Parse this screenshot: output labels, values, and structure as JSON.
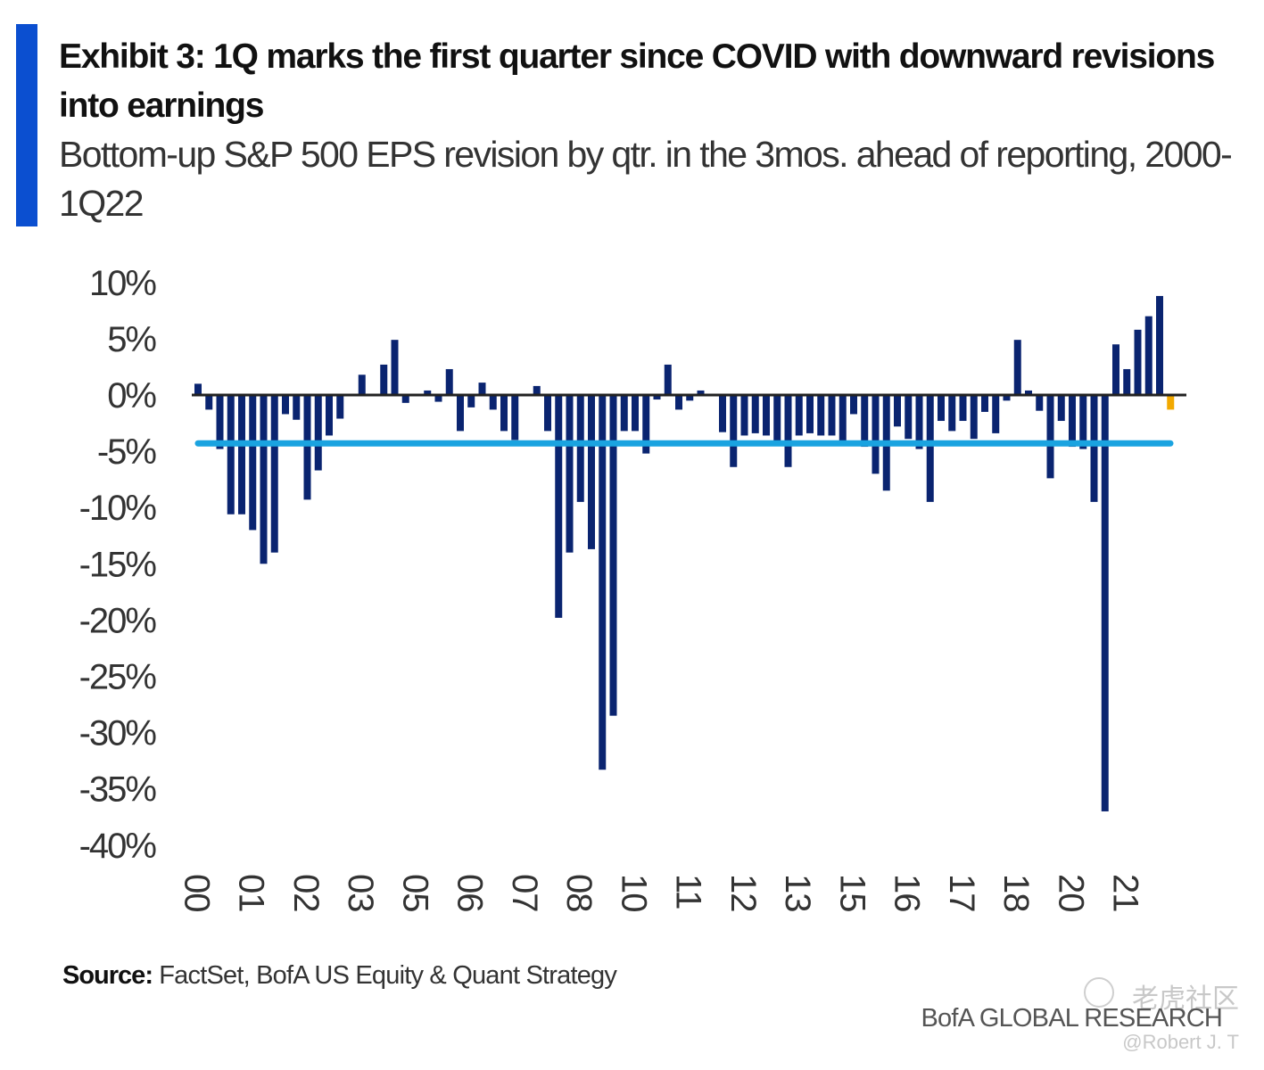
{
  "header": {
    "title": "Exhibit 3: 1Q marks the first quarter since COVID with downward revisions into earnings",
    "subtitle": "Bottom-up S&P 500 EPS revision by qtr. in the 3mos. ahead of reporting, 2000-1Q22"
  },
  "footer": {
    "source_label": "Source:",
    "source_text": "FactSet, BofA US Equity & Quant Strategy",
    "brand": "BofA GLOBAL RESEARCH",
    "watermark_cn": "老虎社区",
    "watermark_user": "@Robert J. T"
  },
  "colors": {
    "accent": "#0b4fd0",
    "bar": "#0a2470",
    "highlight_bar": "#f2a900",
    "average_line": "#1aa3e0",
    "zero_line": "#222222"
  },
  "chart_data": {
    "type": "bar",
    "title": "Exhibit 3: 1Q marks the first quarter since COVID with downward revisions into earnings",
    "subtitle": "Bottom-up S&P 500 EPS revision by qtr. in the 3mos. ahead of reporting, 2000-1Q22",
    "xlabel": "",
    "ylabel": "",
    "ylim": [
      -40,
      10
    ],
    "yticks": [
      10,
      5,
      0,
      -5,
      -10,
      -15,
      -20,
      -25,
      -30,
      -35,
      -40
    ],
    "ytick_labels": [
      "10%",
      "5%",
      "0%",
      "-5%",
      "-10%",
      "-15%",
      "-20%",
      "-25%",
      "-30%",
      "-35%",
      "-40%"
    ],
    "xtick_labels": [
      "00",
      "01",
      "02",
      "03",
      "05",
      "06",
      "07",
      "08",
      "10",
      "11",
      "12",
      "13",
      "15",
      "16",
      "17",
      "18",
      "20",
      "21"
    ],
    "xtick_quarter_index": [
      0,
      5,
      10,
      15,
      20,
      25,
      30,
      35,
      40,
      45,
      50,
      55,
      60,
      65,
      70,
      75,
      80,
      85
    ],
    "grid": false,
    "legend": "none",
    "period": "1Q00-1Q22 (quarterly)",
    "series": [
      {
        "name": "EPS revision (3 mos. ahead of reporting)",
        "unit": "%",
        "values": [
          1.0,
          -1.3,
          -4.8,
          -10.6,
          -10.6,
          -12.0,
          -15.0,
          -14.0,
          -1.7,
          -2.2,
          -9.3,
          -6.7,
          -3.6,
          -2.1,
          0.0,
          1.8,
          0.0,
          2.7,
          4.9,
          -0.7,
          0.0,
          0.4,
          -0.6,
          2.3,
          -3.2,
          -1.1,
          1.1,
          -1.3,
          -3.2,
          -4.0,
          0.0,
          0.8,
          -3.2,
          -19.8,
          -14.0,
          -9.5,
          -13.7,
          -33.3,
          -28.5,
          -3.2,
          -3.2,
          -5.2,
          -0.4,
          2.7,
          -1.3,
          -0.5,
          0.4,
          0.0,
          -3.3,
          -6.4,
          -3.6,
          -3.4,
          -3.6,
          -4.2,
          -6.4,
          -3.6,
          -3.4,
          -3.6,
          -3.6,
          -4.2,
          -1.7,
          -4.6,
          -7.0,
          -8.5,
          -2.8,
          -3.9,
          -4.8,
          -9.5,
          -2.3,
          -3.2,
          -2.3,
          -3.9,
          -1.5,
          -3.4,
          -0.5,
          4.9,
          0.4,
          -1.4,
          -7.4,
          -2.3,
          -4.6,
          -4.8,
          -9.5,
          -37.0,
          4.5,
          2.3,
          5.8,
          7.0,
          8.8,
          -1.3
        ]
      }
    ],
    "highlight": {
      "index": 89,
      "label": "1Q22",
      "value": -1.3,
      "color": "#f2a900"
    },
    "reference_lines": [
      {
        "name": "Average",
        "value": -4.3,
        "color": "#1aa3e0"
      }
    ]
  }
}
